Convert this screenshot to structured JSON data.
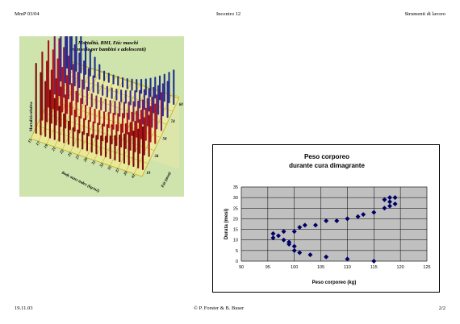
{
  "header": {
    "left": "MmP 03/04",
    "center": "Incontro 12",
    "right": "Strumenti di lavoro"
  },
  "footer": {
    "left": "19.11.03",
    "center": "© P. Forster & B. Buser",
    "right": "2/2"
  },
  "image3d": {
    "title_line1": "Mortalità, BMI, Età: maschi",
    "title_line2": "(non vale per bambini e adolescenti)",
    "z_axis_label": "Mortalità relativa",
    "x_axis_label": "Body mass index (kg/m2)",
    "y_axis_label": "Età (anni)",
    "bmi_ticks": [
      "15",
      "17",
      "19",
      "21",
      "23",
      "25",
      "27",
      "29",
      "31",
      "33",
      "35",
      "37",
      "39",
      "41"
    ],
    "age_ticks": [
      "19",
      "34",
      "54",
      "74",
      "60"
    ],
    "colors": {
      "background": "#cfe3ad",
      "floor": "#e8e89a",
      "grid": "#b9a600",
      "front": "#7a0a0a",
      "mid": "#b01418",
      "back": "#1e2e8a"
    }
  },
  "chart_data": {
    "type": "scatter",
    "title": "Peso corporeo",
    "subtitle": "durante cura dimagrante",
    "xlabel": "Peso corporeo (kg)",
    "ylabel": "Durata (mesi)",
    "xlim": [
      90,
      125
    ],
    "ylim": [
      0,
      35
    ],
    "xticks": [
      90,
      95,
      100,
      105,
      110,
      115,
      120,
      125
    ],
    "yticks": [
      0,
      5,
      10,
      15,
      20,
      25,
      30,
      35
    ],
    "grid": true,
    "plot_background": "#c0c0c0",
    "marker_color": "#000066",
    "points": [
      [
        96,
        11
      ],
      [
        96,
        13
      ],
      [
        97,
        12
      ],
      [
        98,
        14
      ],
      [
        98,
        10
      ],
      [
        99,
        9
      ],
      [
        99,
        8
      ],
      [
        100,
        14
      ],
      [
        100,
        7
      ],
      [
        100,
        5
      ],
      [
        101,
        4
      ],
      [
        101,
        16
      ],
      [
        102,
        17
      ],
      [
        103,
        3
      ],
      [
        104,
        17
      ],
      [
        106,
        2
      ],
      [
        106,
        19
      ],
      [
        108,
        19
      ],
      [
        110,
        20
      ],
      [
        110,
        1
      ],
      [
        112,
        21
      ],
      [
        113,
        22
      ],
      [
        115,
        23
      ],
      [
        115,
        0
      ],
      [
        117,
        29
      ],
      [
        117,
        25
      ],
      [
        118,
        30
      ],
      [
        118,
        26
      ],
      [
        118,
        28
      ],
      [
        119,
        27
      ],
      [
        119,
        30
      ]
    ]
  }
}
